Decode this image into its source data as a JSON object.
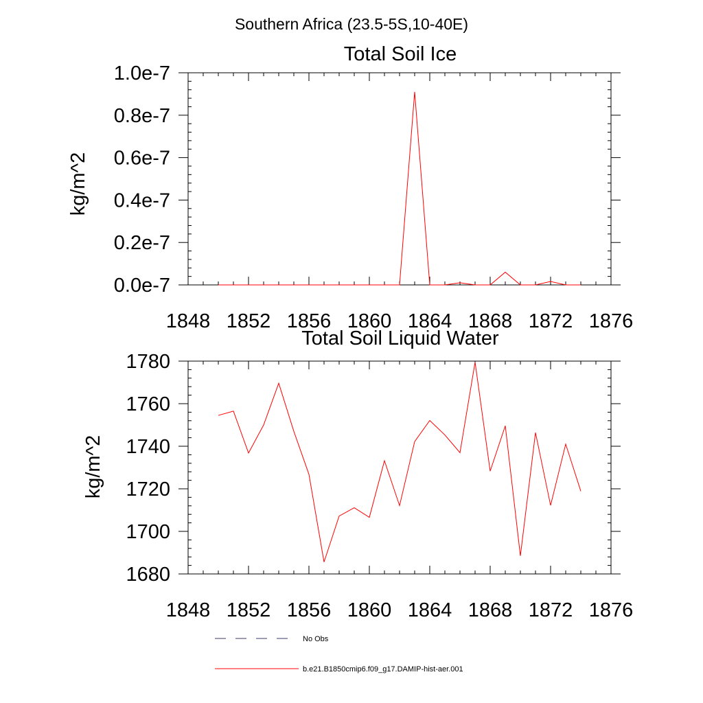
{
  "figure_title": "Southern Africa (23.5-5S,10-40E)",
  "colors": {
    "model": "#ff0000",
    "obs": "#3a3a6a",
    "axes": "#000000"
  },
  "legend": {
    "obs_label": "No Obs",
    "model_label": "b.e21.B1850cmip6.f09_g17.DAMIP-hist-aer.001"
  },
  "chart_data": [
    {
      "type": "line",
      "title": "Total Soil Ice",
      "xlabel": "",
      "ylabel": "kg/m^2",
      "xlim": [
        1848,
        1876
      ],
      "ylim": [
        0,
        1e-07
      ],
      "x_ticks": [
        1848,
        1852,
        1856,
        1860,
        1864,
        1868,
        1872,
        1876
      ],
      "x_tick_labels": [
        "1848",
        "1852",
        "1856",
        "1860",
        "1864",
        "1868",
        "1872",
        "1876"
      ],
      "y_ticks": [
        0,
        2e-08,
        4e-08,
        6e-08,
        8e-08,
        1e-07
      ],
      "y_tick_labels": [
        "0.0e-7",
        "0.2e-7",
        "0.4e-7",
        "0.6e-7",
        "0.8e-7",
        "1.0e-7"
      ],
      "grid": false,
      "series": [
        {
          "name": "b.e21.B1850cmip6.f09_g17.DAMIP-hist-aer.001",
          "x": [
            1850,
            1851,
            1852,
            1853,
            1854,
            1855,
            1856,
            1857,
            1858,
            1859,
            1860,
            1861,
            1862,
            1863,
            1864,
            1865,
            1866,
            1867,
            1868,
            1869,
            1870,
            1871,
            1872,
            1873,
            1874
          ],
          "y": [
            0,
            0,
            0,
            0,
            0,
            0,
            0,
            0,
            0,
            0,
            0,
            0,
            0,
            9.1e-08,
            0,
            0,
            1e-09,
            0,
            0,
            6e-09,
            0,
            0,
            1.6e-09,
            0,
            0
          ]
        }
      ]
    },
    {
      "type": "line",
      "title": "Total Soil Liquid Water",
      "xlabel": "",
      "ylabel": "kg/m^2",
      "xlim": [
        1848,
        1876
      ],
      "ylim": [
        1680,
        1780
      ],
      "x_ticks": [
        1848,
        1852,
        1856,
        1860,
        1864,
        1868,
        1872,
        1876
      ],
      "x_tick_labels": [
        "1848",
        "1852",
        "1856",
        "1860",
        "1864",
        "1868",
        "1872",
        "1876"
      ],
      "y_ticks": [
        1680,
        1700,
        1720,
        1740,
        1760,
        1780
      ],
      "y_tick_labels": [
        "1680",
        "1700",
        "1720",
        "1740",
        "1760",
        "1780"
      ],
      "grid": false,
      "series": [
        {
          "name": "b.e21.B1850cmip6.f09_g17.DAMIP-hist-aer.001",
          "x": [
            1850,
            1851,
            1852,
            1853,
            1854,
            1855,
            1856,
            1857,
            1858,
            1859,
            1860,
            1861,
            1862,
            1863,
            1864,
            1865,
            1866,
            1867,
            1868,
            1869,
            1870,
            1871,
            1872,
            1873,
            1874
          ],
          "y": [
            1754.5,
            1756.5,
            1736.8,
            1750,
            1769.6,
            1747,
            1726.8,
            1685.6,
            1707.2,
            1711.1,
            1706.6,
            1733.2,
            1712.1,
            1742.2,
            1752.1,
            1745.3,
            1737,
            1779.5,
            1728.3,
            1749.6,
            1688.5,
            1746.4,
            1712.2,
            1741,
            1718.9
          ]
        }
      ]
    }
  ]
}
